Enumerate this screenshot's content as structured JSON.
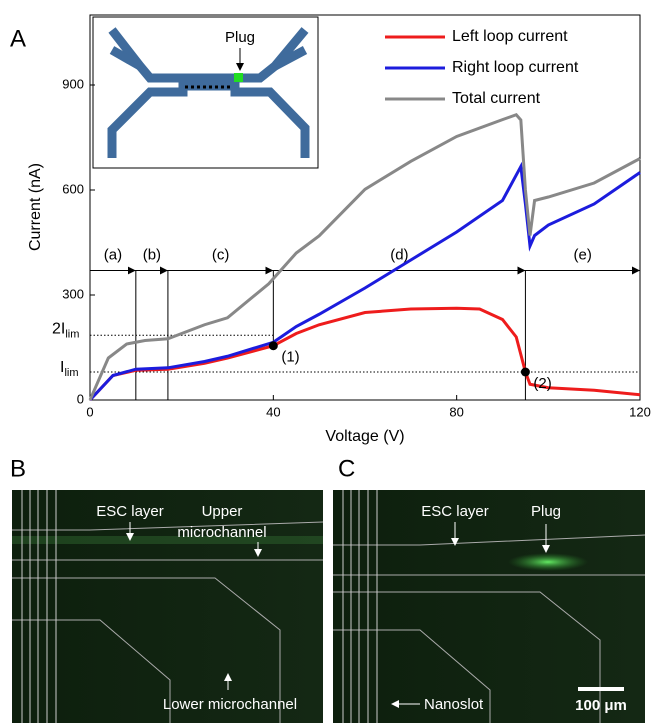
{
  "chart_data": {
    "type": "line",
    "panel_label": "A",
    "x_label": "Voltage (V)",
    "y_label": "Current (nA)",
    "xlim": [
      0,
      120
    ],
    "ylim": [
      0,
      1100
    ],
    "xticks": [
      0,
      40,
      80,
      120
    ],
    "yticks": [
      0,
      300,
      600,
      900
    ],
    "legend": "upper right",
    "inset_label": "Plug",
    "series": [
      {
        "name": "Left loop current",
        "color": "#ee1c1c",
        "x": [
          0,
          5,
          10,
          17,
          25,
          30,
          40,
          45,
          50,
          60,
          70,
          80,
          85,
          90,
          93,
          94,
          95,
          96,
          100,
          110,
          120
        ],
        "values": [
          0,
          70,
          85,
          88,
          105,
          120,
          155,
          190,
          215,
          250,
          260,
          262,
          260,
          230,
          180,
          130,
          80,
          45,
          35,
          28,
          15
        ]
      },
      {
        "name": "Right loop current",
        "color": "#1c1cdd",
        "x": [
          0,
          5,
          10,
          17,
          25,
          30,
          40,
          45,
          50,
          60,
          70,
          80,
          90,
          94,
          95,
          96,
          97,
          100,
          110,
          120
        ],
        "values": [
          0,
          70,
          88,
          92,
          110,
          125,
          165,
          210,
          245,
          320,
          400,
          480,
          570,
          667,
          560,
          440,
          470,
          500,
          560,
          650
        ]
      },
      {
        "name": "Total current",
        "color": "#888888",
        "x": [
          0,
          4,
          8,
          12,
          17,
          25,
          30,
          39,
          45,
          50,
          60,
          70,
          80,
          90,
          93,
          94,
          95,
          96,
          97,
          100,
          110,
          120
        ],
        "values": [
          0,
          120,
          160,
          170,
          175,
          215,
          235,
          332,
          420,
          469,
          602,
          682,
          753,
          801,
          815,
          800,
          600,
          470,
          570,
          580,
          620,
          690
        ]
      }
    ],
    "levels": [
      {
        "label": "2I",
        "sub": "lim",
        "value": 185
      },
      {
        "label": "I",
        "sub": "lim",
        "value": 80
      }
    ],
    "regions": {
      "value": 370,
      "bounds": [
        0,
        10,
        17,
        40,
        95,
        120
      ],
      "labels": [
        "(a)",
        "(b)",
        "(c)",
        "(d)",
        "(e)"
      ]
    },
    "points": [
      {
        "label": "(1)",
        "x": 40,
        "y": 155
      },
      {
        "label": "(2)",
        "x": 95,
        "y": 80
      }
    ]
  },
  "images": [
    {
      "label": "B",
      "esc": "ESC layer",
      "upper": [
        "Upper",
        "microchannel"
      ],
      "lower": "Lower microchannel"
    },
    {
      "label": "C",
      "esc": "ESC layer",
      "plug": "Plug",
      "nanoslot": "Nanoslot",
      "scale": "100 μm"
    }
  ]
}
